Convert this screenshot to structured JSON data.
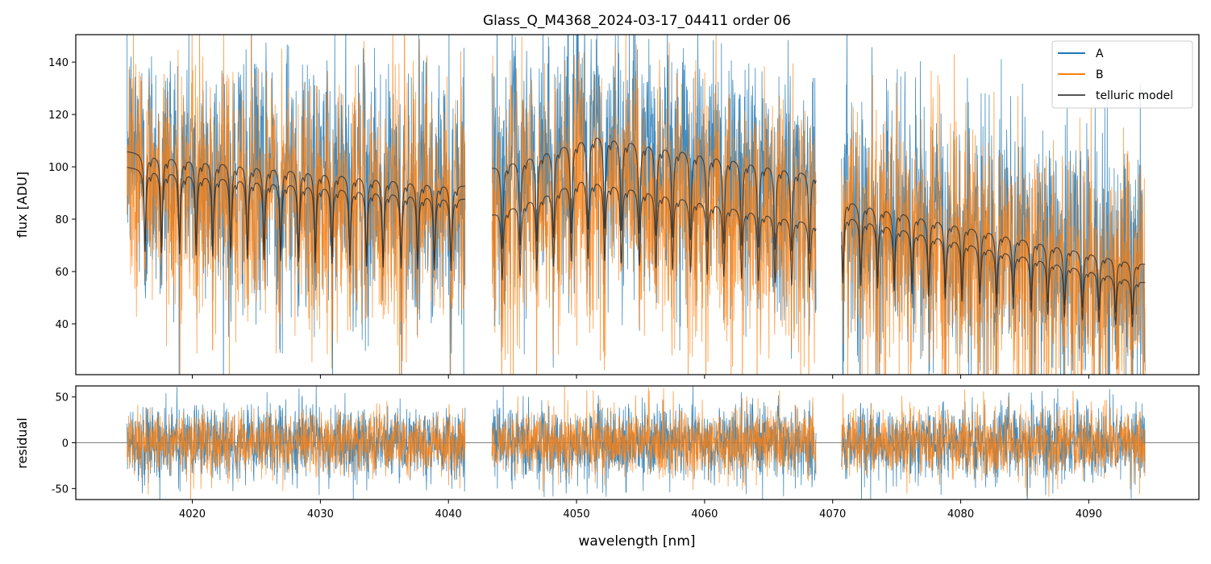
{
  "chart_data": [
    {
      "type": "line",
      "title": "Glass_Q_M4368_2024-03-17_04411  order 06",
      "xlabel": "",
      "ylabel": "flux [ADU]",
      "xlim": [
        4010.9,
        4098.6
      ],
      "ylim": [
        20.6,
        150.5
      ],
      "xticks": [
        4020,
        4030,
        4040,
        4050,
        4060,
        4070,
        4080,
        4090
      ],
      "yticks": [
        40,
        60,
        80,
        100,
        120,
        140
      ],
      "grid": false,
      "legend": {
        "placement": "top-right",
        "entries": [
          "A",
          "B",
          "telluric model"
        ]
      },
      "segments": [
        [
          4014.9,
          4041.3
        ],
        [
          4043.4,
          4068.7
        ],
        [
          4070.7,
          4094.4
        ]
      ],
      "series": [
        {
          "name": "A",
          "color": "#1f77b4",
          "scatter_adu": 24,
          "model_continuum": [
            [
              4014.9,
              106
            ],
            [
              4041.3,
              93
            ],
            [
              4043.4,
              100
            ],
            [
              4051.5,
              113
            ],
            [
              4068.7,
              98
            ],
            [
              4070.7,
              88
            ],
            [
              4094.4,
              63
            ]
          ]
        },
        {
          "name": "B",
          "color": "#ff7f0e",
          "scatter_adu": 24,
          "model_continuum": [
            [
              4014.9,
              100
            ],
            [
              4041.3,
              88
            ],
            [
              4043.4,
              82
            ],
            [
              4050.5,
              96
            ],
            [
              4068.7,
              79
            ],
            [
              4070.7,
              82
            ],
            [
              4094.4,
              56
            ]
          ]
        },
        {
          "name": "telluric model",
          "color": "#333333"
        }
      ],
      "telluric_line_centers": [
        4016.3,
        4017.6,
        4019.0,
        4020.3,
        4021.6,
        4023.0,
        4024.3,
        4025.6,
        4026.9,
        4028.3,
        4029.6,
        4030.9,
        4032.3,
        4033.6,
        4034.9,
        4036.3,
        4037.6,
        4038.9,
        4040.2,
        4044.2,
        4045.6,
        4046.9,
        4048.2,
        4049.6,
        4050.9,
        4052.2,
        4053.5,
        4054.9,
        4056.2,
        4057.5,
        4058.9,
        4060.2,
        4061.5,
        4062.9,
        4064.2,
        4065.5,
        4066.8,
        4068.2,
        4070.8,
        4072.2,
        4073.5,
        4074.8,
        4076.2,
        4077.5,
        4078.8,
        4080.1,
        4081.5,
        4082.8,
        4084.1,
        4085.5,
        4086.8,
        4088.1,
        4089.5,
        4090.8,
        4092.1,
        4093.4
      ],
      "telluric_line_depth_fraction": 0.32
    },
    {
      "type": "line",
      "xlabel": "wavelength [nm]",
      "ylabel": "residual",
      "xlim": [
        4010.9,
        4098.6
      ],
      "ylim": [
        -62,
        62
      ],
      "xticks": [
        4020,
        4030,
        4040,
        4050,
        4060,
        4070,
        4080,
        4090
      ],
      "yticks": [
        -50,
        0,
        50
      ],
      "grid": false,
      "zero_line": 0,
      "series": [
        {
          "name": "A",
          "color": "#1f77b4",
          "scatter_adu": 20
        },
        {
          "name": "B",
          "color": "#ff7f0e",
          "scatter_adu": 18
        }
      ]
    }
  ]
}
